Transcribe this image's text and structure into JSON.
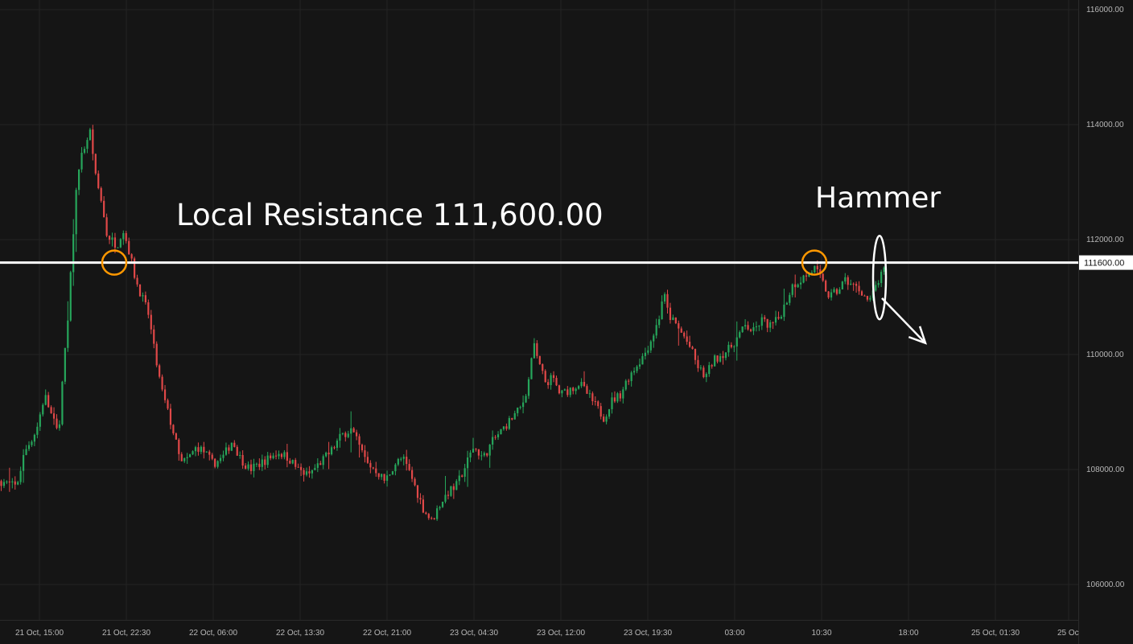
{
  "chart_data": {
    "type": "candlestick",
    "title": "",
    "xlabel": "",
    "ylabel": "",
    "ylim": [
      105200,
      116150
    ],
    "y_ticks": [
      "116000.00",
      "114000.00",
      "112000.00",
      "110000.00",
      "108000.00",
      "106000.00"
    ],
    "x_ticks": [
      "21 Oct, 15:00",
      "21 Oct, 22:30",
      "22 Oct, 06:00",
      "22 Oct, 13:30",
      "22 Oct, 21:00",
      "23 Oct, 04:30",
      "23 Oct, 12:00",
      "23 Oct, 19:30",
      "03:00",
      "10:30",
      "18:00",
      "25 Oct, 01:30",
      "25 Oc"
    ],
    "grid": true,
    "colors": {
      "background": "#151515",
      "up": "#26a65b",
      "down": "#e04848",
      "resistance_line": "#ffffff",
      "circle": "#ff9800",
      "annotation": "#ffffff"
    },
    "price_path": [
      [
        0,
        107800
      ],
      [
        20,
        107700
      ],
      [
        30,
        108300
      ],
      [
        45,
        108700
      ],
      [
        55,
        109300
      ],
      [
        62,
        109000
      ],
      [
        72,
        108600
      ],
      [
        78,
        109700
      ],
      [
        84,
        110600
      ],
      [
        90,
        112000
      ],
      [
        96,
        113200
      ],
      [
        104,
        113600
      ],
      [
        112,
        113900
      ],
      [
        118,
        113100
      ],
      [
        125,
        112700
      ],
      [
        132,
        112100
      ],
      [
        138,
        112000
      ],
      [
        145,
        111900
      ],
      [
        152,
        112200
      ],
      [
        160,
        111800
      ],
      [
        168,
        111300
      ],
      [
        176,
        111000
      ],
      [
        184,
        110700
      ],
      [
        192,
        110000
      ],
      [
        200,
        109400
      ],
      [
        208,
        109000
      ],
      [
        216,
        108600
      ],
      [
        224,
        108100
      ],
      [
        234,
        108200
      ],
      [
        244,
        108400
      ],
      [
        254,
        108300
      ],
      [
        264,
        108100
      ],
      [
        276,
        108200
      ],
      [
        288,
        108500
      ],
      [
        298,
        108200
      ],
      [
        310,
        108000
      ],
      [
        322,
        108100
      ],
      [
        334,
        108200
      ],
      [
        346,
        108300
      ],
      [
        358,
        108200
      ],
      [
        370,
        108000
      ],
      [
        382,
        107900
      ],
      [
        396,
        108100
      ],
      [
        410,
        108300
      ],
      [
        424,
        108600
      ],
      [
        436,
        108700
      ],
      [
        446,
        108400
      ],
      [
        456,
        108100
      ],
      [
        466,
        108000
      ],
      [
        478,
        107800
      ],
      [
        490,
        108100
      ],
      [
        500,
        108200
      ],
      [
        510,
        107900
      ],
      [
        518,
        107600
      ],
      [
        526,
        107300
      ],
      [
        536,
        107100
      ],
      [
        546,
        107400
      ],
      [
        556,
        107600
      ],
      [
        566,
        107700
      ],
      [
        576,
        108000
      ],
      [
        588,
        108400
      ],
      [
        600,
        108200
      ],
      [
        612,
        108500
      ],
      [
        624,
        108700
      ],
      [
        636,
        108900
      ],
      [
        648,
        109100
      ],
      [
        656,
        109500
      ],
      [
        662,
        110200
      ],
      [
        670,
        109800
      ],
      [
        678,
        109500
      ],
      [
        686,
        109600
      ],
      [
        696,
        109300
      ],
      [
        708,
        109400
      ],
      [
        720,
        109500
      ],
      [
        730,
        109300
      ],
      [
        740,
        109100
      ],
      [
        750,
        108900
      ],
      [
        760,
        109200
      ],
      [
        770,
        109300
      ],
      [
        780,
        109600
      ],
      [
        790,
        109800
      ],
      [
        800,
        110000
      ],
      [
        810,
        110300
      ],
      [
        818,
        110600
      ],
      [
        824,
        111100
      ],
      [
        830,
        110700
      ],
      [
        840,
        110500
      ],
      [
        850,
        110300
      ],
      [
        858,
        110100
      ],
      [
        866,
        109800
      ],
      [
        876,
        109600
      ],
      [
        886,
        109900
      ],
      [
        896,
        110000
      ],
      [
        906,
        110100
      ],
      [
        916,
        110300
      ],
      [
        926,
        110500
      ],
      [
        936,
        110400
      ],
      [
        946,
        110600
      ],
      [
        956,
        110500
      ],
      [
        966,
        110600
      ],
      [
        976,
        110900
      ],
      [
        984,
        111200
      ],
      [
        994,
        111300
      ],
      [
        1004,
        111400
      ],
      [
        1012,
        111500
      ],
      [
        1020,
        111300
      ],
      [
        1030,
        111000
      ],
      [
        1040,
        111100
      ],
      [
        1050,
        111300
      ],
      [
        1060,
        111200
      ],
      [
        1070,
        111100
      ],
      [
        1080,
        110900
      ],
      [
        1088,
        111200
      ],
      [
        1096,
        111400
      ],
      [
        1100,
        111500
      ]
    ],
    "resistance": {
      "value": 111600,
      "label": "111600.00"
    },
    "annotations": {
      "resistance_text": "Local Resistance 111,600.00",
      "hammer_text": "Hammer"
    },
    "markers": [
      {
        "type": "circle",
        "x_index": 142,
        "y": 111600
      },
      {
        "type": "circle",
        "x_index": 1012,
        "y": 111600
      },
      {
        "type": "ellipse",
        "x_index": 1093,
        "y": 111340
      },
      {
        "type": "arrow",
        "from": [
          1096,
          111400
        ],
        "to": [
          1150,
          110200
        ]
      }
    ]
  }
}
